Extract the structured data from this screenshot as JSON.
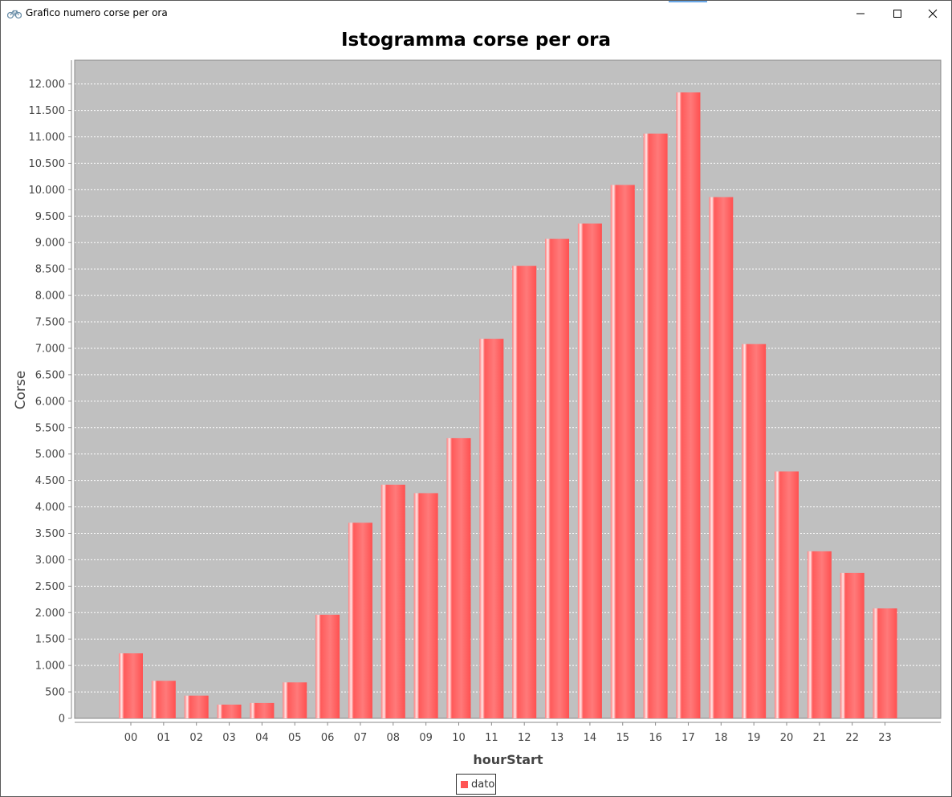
{
  "window": {
    "title": "Grafico numero corse per ora",
    "icon": "bicycle-icon",
    "controls": [
      "minimize-icon",
      "maximize-icon",
      "close-icon"
    ]
  },
  "chart_data": {
    "type": "bar",
    "title": "Istogramma corse per ora",
    "xlabel": "hourStart",
    "ylabel": "Corse",
    "categories": [
      "00",
      "01",
      "02",
      "03",
      "04",
      "05",
      "06",
      "07",
      "08",
      "09",
      "10",
      "11",
      "12",
      "13",
      "14",
      "15",
      "16",
      "17",
      "18",
      "19",
      "20",
      "21",
      "22",
      "23"
    ],
    "series": [
      {
        "name": "dato",
        "color": "#ff5555",
        "values": [
          1230,
          710,
          430,
          260,
          290,
          680,
          1960,
          3700,
          4420,
          4260,
          5300,
          7180,
          8560,
          9070,
          9360,
          10090,
          11060,
          11840,
          9860,
          7080,
          4670,
          3160,
          2750,
          2080
        ]
      }
    ],
    "ylim": [
      0,
      12450
    ],
    "yticks": [
      0,
      500,
      1000,
      1500,
      2000,
      2500,
      3000,
      3500,
      4000,
      4500,
      5000,
      5500,
      6000,
      6500,
      7000,
      7500,
      8000,
      8500,
      9000,
      9500,
      10000,
      10500,
      11000,
      11500,
      12000
    ],
    "ytick_labels": [
      "0",
      "500",
      "1.000",
      "1.500",
      "2.000",
      "2.500",
      "3.000",
      "3.500",
      "4.000",
      "4.500",
      "5.000",
      "5.500",
      "6.000",
      "6.500",
      "7.000",
      "7.500",
      "8.000",
      "8.500",
      "9.000",
      "9.500",
      "10.000",
      "10.500",
      "11.000",
      "11.500",
      "12.000"
    ],
    "plot_background": "#c0c0c0",
    "grid": true,
    "legend": "bottom-center"
  }
}
